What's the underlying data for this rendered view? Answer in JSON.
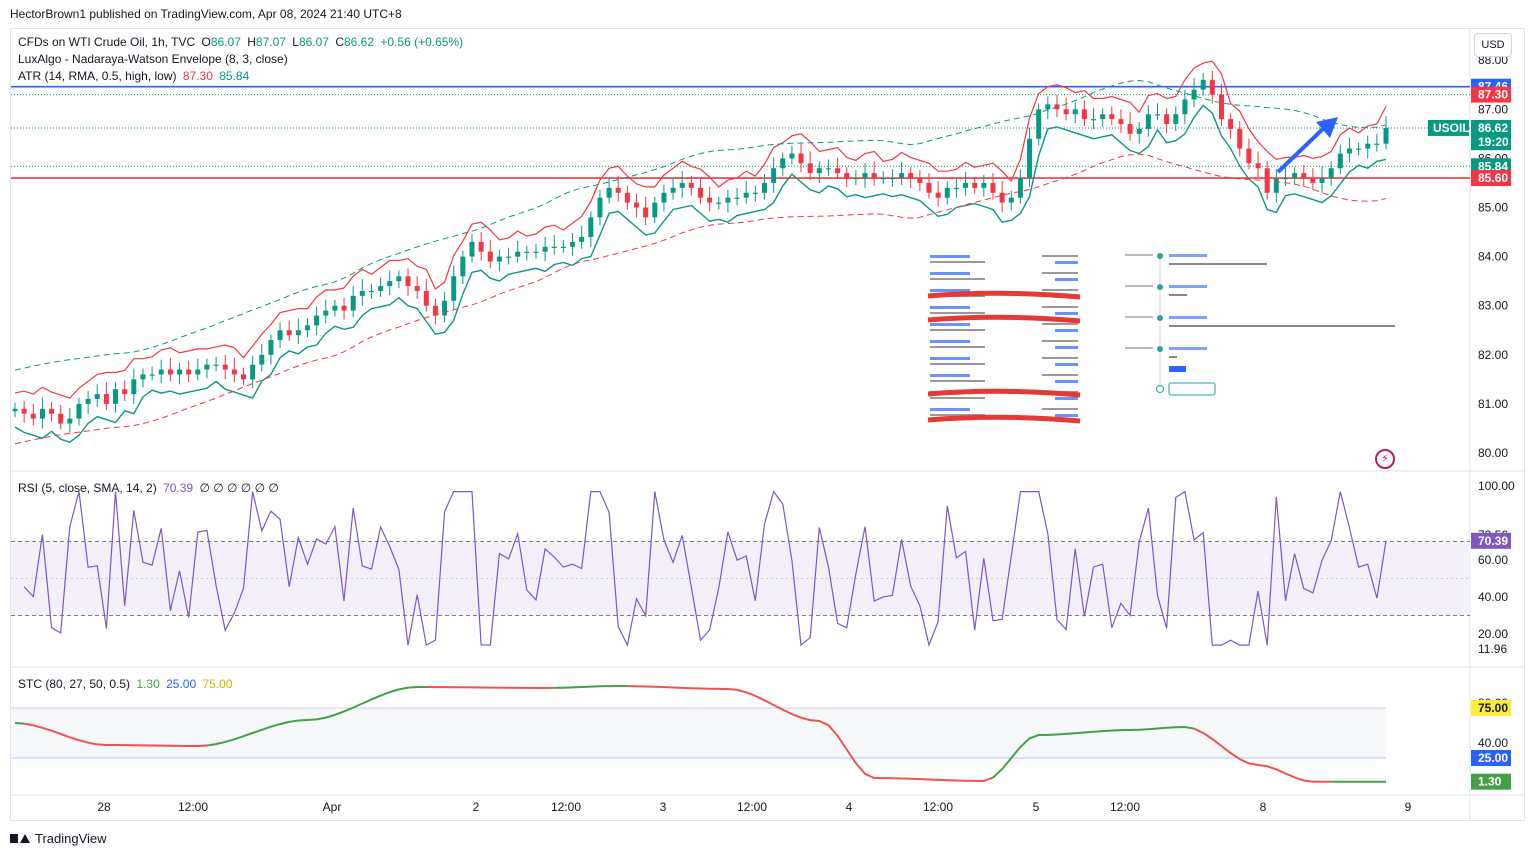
{
  "header": {
    "publisher": "HectorBrown1 published on TradingView.com, Apr 08, 2024 21:40 UTC+8"
  },
  "footer": {
    "brand": "TradingView"
  },
  "currency_button": "USD",
  "legend": {
    "main": {
      "symbol": "CFDs on WTI Crude Oil, 1h, TVC",
      "open_label": "O",
      "open": "86.07",
      "high_label": "H",
      "high": "87.07",
      "low_label": "L",
      "low": "86.07",
      "close_label": "C",
      "close": "86.62",
      "change": "+0.56 (+0.65%)"
    },
    "envelope": "LuxAlgo - Nadaraya-Watson Envelope (8, 3, close)",
    "atr": {
      "label": "ATR (14, RMA, 0.5, high, low)",
      "v1": "87.30",
      "v2": "85.84"
    },
    "rsi": {
      "label": "RSI (5, close, SMA, 14, 2)",
      "value": "70.39",
      "zeros": "∅ ∅ ∅ ∅ ∅ ∅"
    },
    "stc": {
      "label": "STC (80, 27, 50, 0.5)",
      "v1": "1.30",
      "v2": "25.00",
      "v3": "75.00"
    }
  },
  "colors": {
    "up": "#089981",
    "down": "#f23645",
    "blue": "#2962ff",
    "purple": "#7e57c2",
    "green_text": "#43a047",
    "yellow": "#ffeb3b",
    "envelope_up": "#f23645",
    "envelope_dn": "#089981"
  },
  "price_axis": {
    "ticks": [
      "88.00",
      "87.00",
      "86.00",
      "85.00",
      "84.00",
      "83.00",
      "82.00",
      "81.00",
      "80.00"
    ],
    "tags": [
      {
        "text": "87.46",
        "price": 87.46,
        "color": "#2962ff"
      },
      {
        "text": "87.30",
        "price": 87.3,
        "color": "#f23645"
      },
      {
        "text": "86.62",
        "price": 86.62,
        "color": "#089981"
      },
      {
        "text": "19:20",
        "price": 86.33,
        "color": "#089981"
      },
      {
        "text": "85.84",
        "price": 85.84,
        "color": "#089981"
      },
      {
        "text": "85.60",
        "price": 85.6,
        "color": "#f23645"
      }
    ],
    "symbol_tag": "USOIL"
  },
  "time_axis": [
    "28",
    "12:00",
    "Apr",
    "2",
    "12:00",
    "3",
    "12:00",
    "4",
    "12:00",
    "5",
    "12:00",
    "8",
    "9"
  ],
  "rsi_axis": [
    "100.00",
    "73.56",
    "60.00",
    "40.00",
    "20.00",
    "11.96"
  ],
  "rsi_tag": "70.39",
  "stc_axis": [
    "80.00",
    "40.00"
  ],
  "stc_tags": [
    {
      "text": "75.00",
      "value": 75,
      "bg": "#ffeb3b",
      "fg": "#131722"
    },
    {
      "text": "25.00",
      "value": 25,
      "bg": "#2962ff",
      "fg": "#ffffff"
    },
    {
      "text": "1.30",
      "value": 1.3,
      "bg": "#43a047",
      "fg": "#ffffff"
    }
  ],
  "chart_data": {
    "type": "candlestick",
    "symbol": "USOIL",
    "interval": "1h",
    "ylim": [
      79.8,
      88.2
    ],
    "horizontal_lines": [
      {
        "price": 87.46,
        "color": "#2962ff"
      },
      {
        "price": 85.6,
        "color": "#f23645"
      }
    ],
    "close_series": [
      80.9,
      80.8,
      80.7,
      80.9,
      80.8,
      80.6,
      80.7,
      81.0,
      81.1,
      81.2,
      81.0,
      81.3,
      81.2,
      81.5,
      81.6,
      81.6,
      81.7,
      81.6,
      81.7,
      81.6,
      81.7,
      81.8,
      81.8,
      81.7,
      81.6,
      81.5,
      81.8,
      82.0,
      82.3,
      82.5,
      82.4,
      82.5,
      82.6,
      82.8,
      82.9,
      83.0,
      82.9,
      83.2,
      83.3,
      83.3,
      83.4,
      83.5,
      83.6,
      83.4,
      83.3,
      83.0,
      82.8,
      83.1,
      83.6,
      84.0,
      84.3,
      84.1,
      83.9,
      84.0,
      84.0,
      84.1,
      84.1,
      84.1,
      84.2,
      84.2,
      84.2,
      84.3,
      84.4,
      84.8,
      85.2,
      85.4,
      85.3,
      85.1,
      85.0,
      84.8,
      85.1,
      85.3,
      85.4,
      85.5,
      85.4,
      85.2,
      85.1,
      85.1,
      85.2,
      85.2,
      85.3,
      85.3,
      85.5,
      85.8,
      86.0,
      86.1,
      85.9,
      85.7,
      85.8,
      85.8,
      85.7,
      85.6,
      85.6,
      85.7,
      85.6,
      85.6,
      85.6,
      85.7,
      85.6,
      85.5,
      85.3,
      85.2,
      85.4,
      85.4,
      85.5,
      85.4,
      85.5,
      85.3,
      85.1,
      85.2,
      85.6,
      86.4,
      87.0,
      87.1,
      87.0,
      86.9,
      87.0,
      86.8,
      86.8,
      86.9,
      86.8,
      86.7,
      86.5,
      86.6,
      86.9,
      86.9,
      86.7,
      86.9,
      87.2,
      87.4,
      87.6,
      87.3,
      86.8,
      86.6,
      86.2,
      85.9,
      85.8,
      85.3,
      85.6,
      85.6,
      85.7,
      85.6,
      85.5,
      85.6,
      85.8,
      86.1,
      86.2,
      86.2,
      86.3,
      86.3,
      86.62
    ],
    "rsi": {
      "value": 70.39,
      "overbought": 70,
      "oversold": 30,
      "range": [
        0,
        100
      ]
    },
    "stc": {
      "value": 1.3,
      "upper": 75,
      "lower": 25,
      "range": [
        0,
        100
      ]
    }
  }
}
